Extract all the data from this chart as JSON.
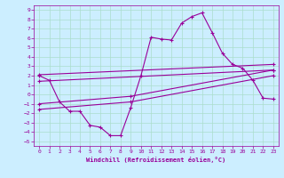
{
  "xlabel": "Windchill (Refroidissement éolien,°C)",
  "background_color": "#cceeff",
  "grid_color": "#aaddcc",
  "line_color": "#990099",
  "xlim": [
    -0.5,
    23.5
  ],
  "ylim": [
    -5.5,
    9.5
  ],
  "xticks": [
    0,
    1,
    2,
    3,
    4,
    5,
    6,
    7,
    8,
    9,
    10,
    11,
    12,
    13,
    14,
    15,
    16,
    17,
    18,
    19,
    20,
    21,
    22,
    23
  ],
  "yticks": [
    -5,
    -4,
    -3,
    -2,
    -1,
    0,
    1,
    2,
    3,
    4,
    5,
    6,
    7,
    8,
    9
  ],
  "line1_x": [
    0,
    1,
    2,
    3,
    4,
    5,
    6,
    7,
    8,
    9,
    10,
    11,
    12,
    13,
    14,
    15,
    16,
    17,
    18,
    19,
    20,
    21,
    22,
    23
  ],
  "line1_y": [
    2.0,
    1.5,
    -0.8,
    -1.8,
    -1.8,
    -3.3,
    -3.5,
    -4.4,
    -4.4,
    -1.4,
    2.0,
    6.1,
    5.9,
    5.8,
    7.6,
    8.3,
    8.7,
    6.6,
    4.4,
    3.2,
    2.8,
    1.5,
    -0.4,
    -0.5
  ],
  "line2_x": [
    0,
    23
  ],
  "line2_y": [
    2.1,
    3.2
  ],
  "line3_x": [
    0,
    23
  ],
  "line3_y": [
    1.4,
    2.6
  ],
  "line4_x": [
    0,
    9,
    23
  ],
  "line4_y": [
    -1.0,
    -0.2,
    2.6
  ],
  "line5_x": [
    0,
    9,
    23
  ],
  "line5_y": [
    -1.6,
    -0.8,
    2.0
  ]
}
